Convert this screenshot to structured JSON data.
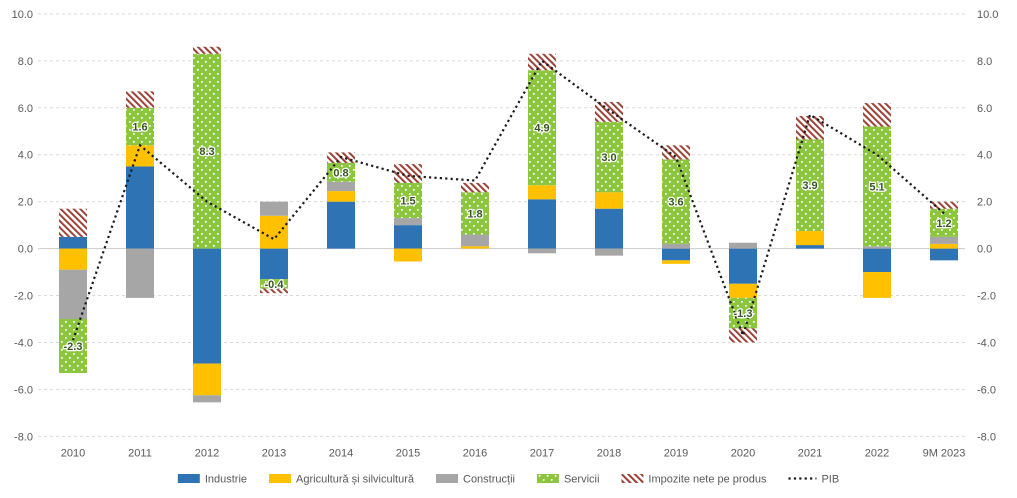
{
  "chart_data": {
    "type": "bar",
    "stacked": true,
    "title": "",
    "xlabel": "",
    "ylabel": "",
    "ylim": [
      -8.0,
      10.0
    ],
    "ytick_step": 2.0,
    "yticks_left": [
      "10.0",
      "8.0",
      "6.0",
      "4.0",
      "2.0",
      "0.0",
      "-2.0",
      "-4.0",
      "-6.0",
      "-8.0"
    ],
    "yticks_right": [
      "10.0",
      "8.0",
      "6.0",
      "4.0",
      "2.0",
      "0.0",
      "-2.0",
      "-4.0",
      "-6.0",
      "-8.0"
    ],
    "grid": "dashed-horizontal",
    "legend_position": "bottom",
    "categories": [
      "2010",
      "2011",
      "2012",
      "2013",
      "2014",
      "2015",
      "2016",
      "2017",
      "2018",
      "2019",
      "2020",
      "2021",
      "2022",
      "9M 2023"
    ],
    "series": [
      {
        "name": "Industrie",
        "slug": "industrie",
        "kind": "bar",
        "color": "#2E74B5",
        "values": [
          0.5,
          3.5,
          -4.9,
          -1.3,
          2.0,
          1.0,
          0.0,
          2.1,
          1.7,
          -0.5,
          -1.5,
          0.15,
          -1.0,
          -0.5
        ]
      },
      {
        "name": "Agricultură și silvicultură",
        "slug": "agricultura",
        "kind": "bar",
        "color": "#FFC000",
        "values": [
          -0.9,
          0.9,
          -1.35,
          1.4,
          0.45,
          -0.55,
          0.1,
          0.6,
          0.7,
          -0.15,
          -0.6,
          0.6,
          -1.1,
          0.2
        ]
      },
      {
        "name": "Construcții",
        "slug": "constructii",
        "kind": "bar",
        "color": "#A6A6A6",
        "values": [
          -2.1,
          -2.1,
          -0.3,
          0.6,
          0.4,
          0.3,
          0.5,
          -0.2,
          -0.3,
          0.2,
          0.25,
          0.0,
          0.1,
          0.3
        ]
      },
      {
        "name": "Servicii",
        "slug": "servicii",
        "kind": "bar",
        "color": "#8CC63F",
        "pattern": "white-dots",
        "values": [
          -2.3,
          1.6,
          8.3,
          -0.4,
          0.8,
          1.5,
          1.8,
          4.9,
          3.0,
          3.6,
          -1.3,
          3.9,
          5.1,
          1.2
        ],
        "data_labels": [
          "-2.3",
          "1.6",
          "8.3",
          "-0.4",
          "0.8",
          "1.5",
          "1.8",
          "4.9",
          "3.0",
          "3.6",
          "-1.3",
          "3.9",
          "5.1",
          "1.2"
        ]
      },
      {
        "name": "Impozite nete pe produs",
        "slug": "impozite",
        "kind": "bar",
        "color": "#984136",
        "pattern": "diagonal-hatch",
        "values": [
          1.2,
          0.7,
          0.3,
          -0.2,
          0.45,
          0.8,
          0.4,
          0.7,
          0.85,
          0.6,
          -0.6,
          1.0,
          1.0,
          0.3
        ]
      },
      {
        "name": "PIB",
        "slug": "pib",
        "kind": "line",
        "color": "#1A1A1A",
        "style": "dotted",
        "values": [
          -3.9,
          4.4,
          2.0,
          0.4,
          3.9,
          3.1,
          2.9,
          8.0,
          5.9,
          3.9,
          -3.7,
          5.7,
          4.0,
          1.5
        ]
      }
    ],
    "colors": {
      "grid": "#D9D9D9",
      "zero_line": "#CCCCCC",
      "axis_text": "#595959",
      "data_label": "#375623",
      "dot_pattern_dot": "#FFFFFF",
      "hatch_background": "#FFFFFF"
    }
  }
}
